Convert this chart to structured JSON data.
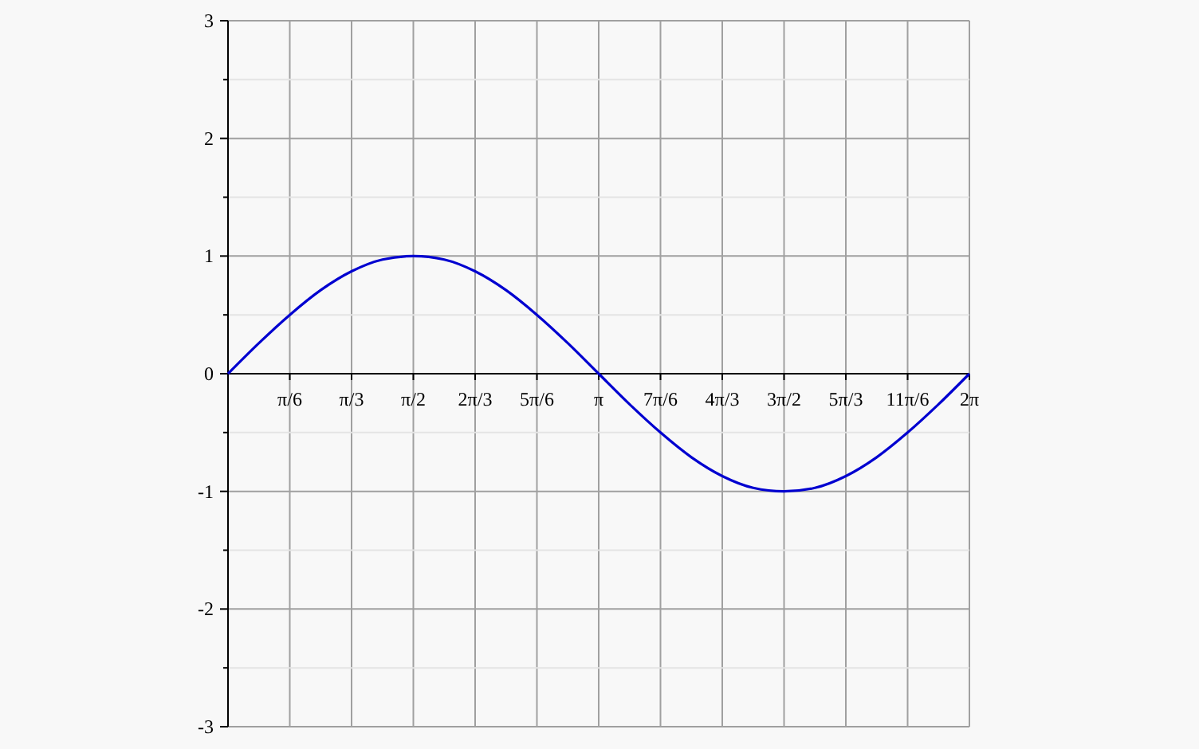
{
  "chart_data": {
    "type": "line",
    "x": [
      0,
      0.2618,
      0.5236,
      0.7854,
      1.0472,
      1.309,
      1.5708,
      1.8326,
      2.0944,
      2.3562,
      2.618,
      2.8798,
      3.1416,
      3.4034,
      3.6652,
      3.927,
      4.1888,
      4.4506,
      4.7124,
      4.9742,
      5.236,
      5.4978,
      5.7596,
      6.0214,
      6.2832
    ],
    "series": [
      {
        "color": "#0000d0",
        "values": [
          0,
          0.26,
          0.5,
          0.71,
          0.87,
          0.97,
          1,
          0.97,
          0.87,
          0.71,
          0.5,
          0.26,
          0,
          -0.26,
          -0.5,
          -0.71,
          -0.87,
          -0.97,
          -1,
          -0.97,
          -0.87,
          -0.71,
          -0.5,
          -0.26,
          0
        ]
      }
    ],
    "xlim": [
      0,
      6.2832
    ],
    "ylim": [
      -3,
      3
    ],
    "xticks": [
      {
        "value": 0.5236,
        "label": "π/6"
      },
      {
        "value": 1.0472,
        "label": "π/3"
      },
      {
        "value": 1.5708,
        "label": "π/2"
      },
      {
        "value": 2.0944,
        "label": "2π/3"
      },
      {
        "value": 2.618,
        "label": "5π/6"
      },
      {
        "value": 3.1416,
        "label": "π"
      },
      {
        "value": 3.6652,
        "label": "7π/6"
      },
      {
        "value": 4.1888,
        "label": "4π/3"
      },
      {
        "value": 4.7124,
        "label": "3π/2"
      },
      {
        "value": 5.236,
        "label": "5π/3"
      },
      {
        "value": 5.7596,
        "label": "11π/6"
      },
      {
        "value": 6.2832,
        "label": "2π"
      }
    ],
    "yticks": [
      {
        "value": -3,
        "label": "-3"
      },
      {
        "value": -2.5,
        "label": null
      },
      {
        "value": -2,
        "label": "-2"
      },
      {
        "value": -1.5,
        "label": null
      },
      {
        "value": -1,
        "label": "-1"
      },
      {
        "value": -0.5,
        "label": null
      },
      0,
      {
        "value": 0.5,
        "label": null
      },
      1,
      {
        "value": 1.5,
        "label": null
      },
      2,
      {
        "value": 2.5,
        "label": null
      },
      3
    ],
    "grid": true,
    "marker": "none",
    "line_style": "solid"
  }
}
